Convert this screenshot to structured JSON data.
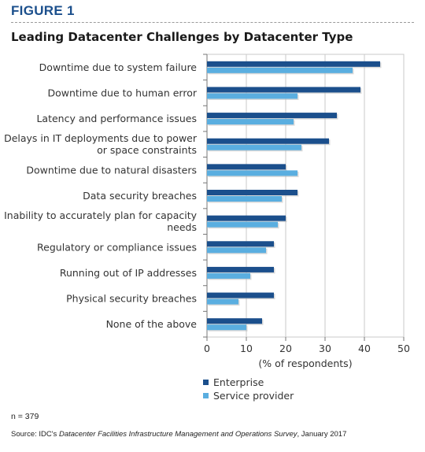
{
  "figure_label": "FIGURE 1",
  "note": "n = 379",
  "source": {
    "prefix": "Source: IDC's ",
    "title": "Datacenter Facilities Infrastructure Management and Operations Survey",
    "suffix": ", January 2017"
  },
  "colors": {
    "enterprise": "#1b4f8c",
    "service_provider": "#5aaee0",
    "grid": "#c8c8c8",
    "axis": "#777777"
  },
  "chart_data": {
    "type": "bar",
    "orientation": "horizontal",
    "title": "Leading Datacenter Challenges by Datacenter Type",
    "xlabel": "(% of respondents)",
    "ylabel": "",
    "xlim": [
      0,
      50
    ],
    "xticks": [
      0,
      10,
      20,
      30,
      40,
      50
    ],
    "grid": true,
    "legend_position": "bottom",
    "categories": [
      [
        "Downtime due to system failure"
      ],
      [
        "Downtime due to human error"
      ],
      [
        "Latency and performance issues"
      ],
      [
        "Delays in IT deployments due to power",
        "or space constraints"
      ],
      [
        "Downtime due to natural disasters"
      ],
      [
        "Data security breaches"
      ],
      [
        "Inability to accurately plan for capacity",
        "needs"
      ],
      [
        "Regulatory or compliance issues"
      ],
      [
        "Running out of IP addresses"
      ],
      [
        "Physical security breaches"
      ],
      [
        "None of the above"
      ]
    ],
    "series": [
      {
        "name": "Enterprise",
        "values": [
          44,
          39,
          33,
          31,
          20,
          23,
          20,
          17,
          17,
          17,
          14
        ]
      },
      {
        "name": "Service provider",
        "values": [
          37,
          23,
          22,
          24,
          23,
          19,
          18,
          15,
          11,
          8,
          10
        ]
      }
    ]
  }
}
